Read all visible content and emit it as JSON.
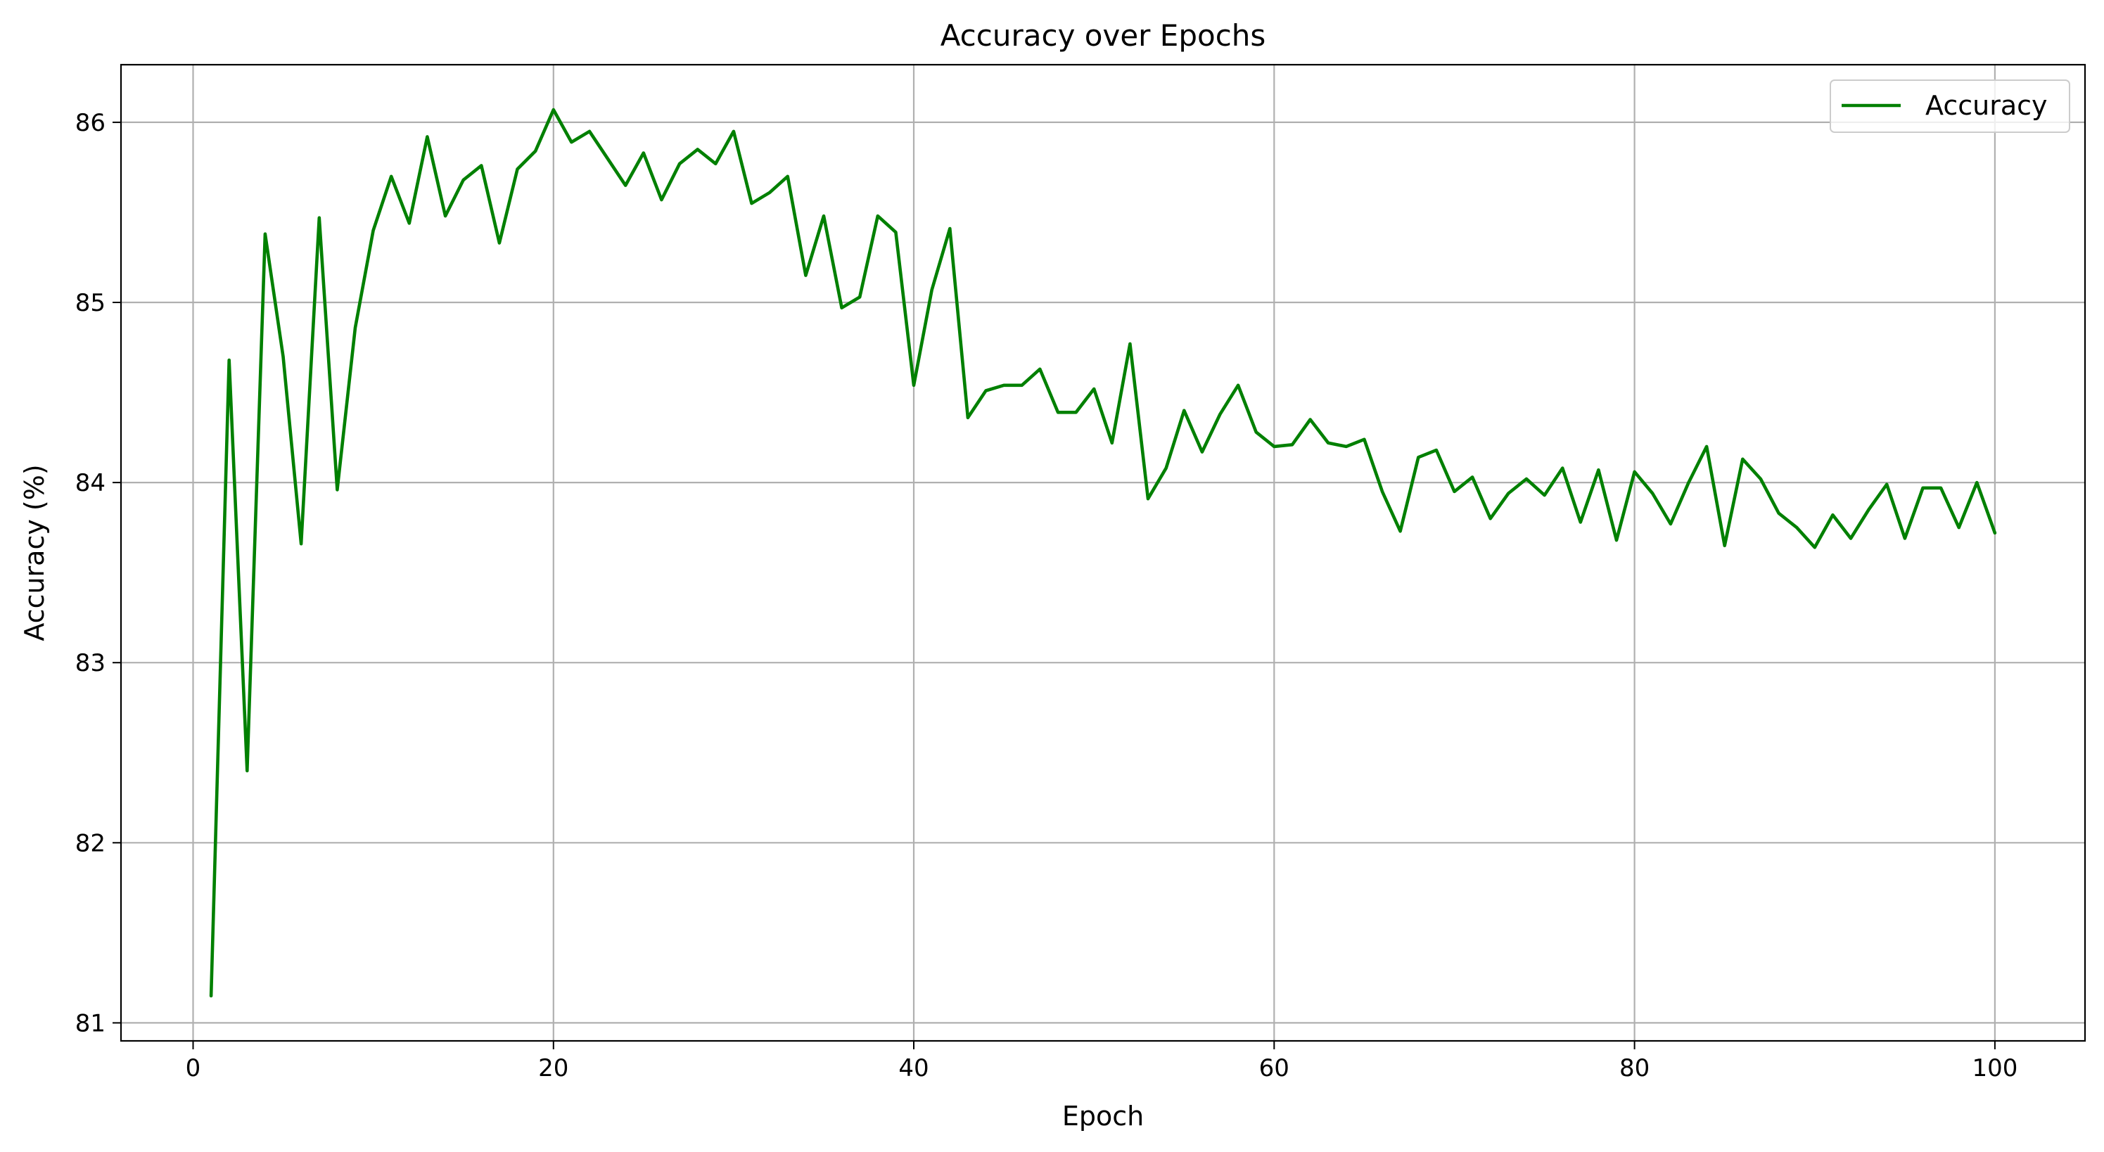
{
  "chart_data": {
    "type": "line",
    "title": "Accuracy over Epochs",
    "xlabel": "Epoch",
    "ylabel": "Accuracy (%)",
    "xlim": [
      -4,
      105
    ],
    "ylim": [
      80.9,
      86.32
    ],
    "xticks": [
      0,
      20,
      40,
      60,
      80,
      100
    ],
    "yticks": [
      81,
      82,
      83,
      84,
      85,
      86
    ],
    "grid": true,
    "legend_position": "top-right",
    "series": [
      {
        "name": "Accuracy",
        "color": "#008000",
        "x": [
          1,
          2,
          3,
          4,
          5,
          6,
          7,
          8,
          9,
          10,
          11,
          12,
          13,
          14,
          15,
          16,
          17,
          18,
          19,
          20,
          21,
          22,
          23,
          24,
          25,
          26,
          27,
          28,
          29,
          30,
          31,
          32,
          33,
          34,
          35,
          36,
          37,
          38,
          39,
          40,
          41,
          42,
          43,
          44,
          45,
          46,
          47,
          48,
          49,
          50,
          51,
          52,
          53,
          54,
          55,
          56,
          57,
          58,
          59,
          60,
          61,
          62,
          63,
          64,
          65,
          66,
          67,
          68,
          69,
          70,
          71,
          72,
          73,
          74,
          75,
          76,
          77,
          78,
          79,
          80,
          81,
          82,
          83,
          84,
          85,
          86,
          87,
          88,
          89,
          90,
          91,
          92,
          93,
          94,
          95,
          96,
          97,
          98,
          99,
          100
        ],
        "values": [
          81.15,
          84.68,
          82.4,
          85.38,
          84.7,
          83.66,
          85.47,
          83.96,
          84.86,
          85.4,
          85.7,
          85.44,
          85.92,
          85.48,
          85.68,
          85.76,
          85.33,
          85.74,
          85.84,
          86.07,
          85.89,
          85.95,
          85.8,
          85.65,
          85.83,
          85.57,
          85.77,
          85.85,
          85.77,
          85.95,
          85.55,
          85.61,
          85.7,
          85.15,
          85.48,
          84.97,
          85.03,
          85.48,
          85.39,
          84.54,
          85.07,
          85.41,
          84.36,
          84.51,
          84.54,
          84.54,
          84.63,
          84.39,
          84.39,
          84.52,
          84.22,
          84.77,
          83.91,
          84.08,
          84.4,
          84.17,
          84.38,
          84.54,
          84.28,
          84.2,
          84.21,
          84.35,
          84.22,
          84.2,
          84.24,
          83.95,
          83.73,
          84.14,
          84.18,
          83.95,
          84.03,
          83.8,
          83.94,
          84.02,
          83.93,
          84.08,
          83.78,
          84.07,
          83.68,
          84.06,
          83.94,
          83.77,
          84.0,
          84.2,
          83.65,
          84.13,
          84.02,
          83.83,
          83.75,
          83.64,
          83.82,
          83.69,
          83.85,
          83.99,
          83.69,
          83.97,
          83.97,
          83.75,
          84.0,
          83.72
        ]
      }
    ]
  }
}
